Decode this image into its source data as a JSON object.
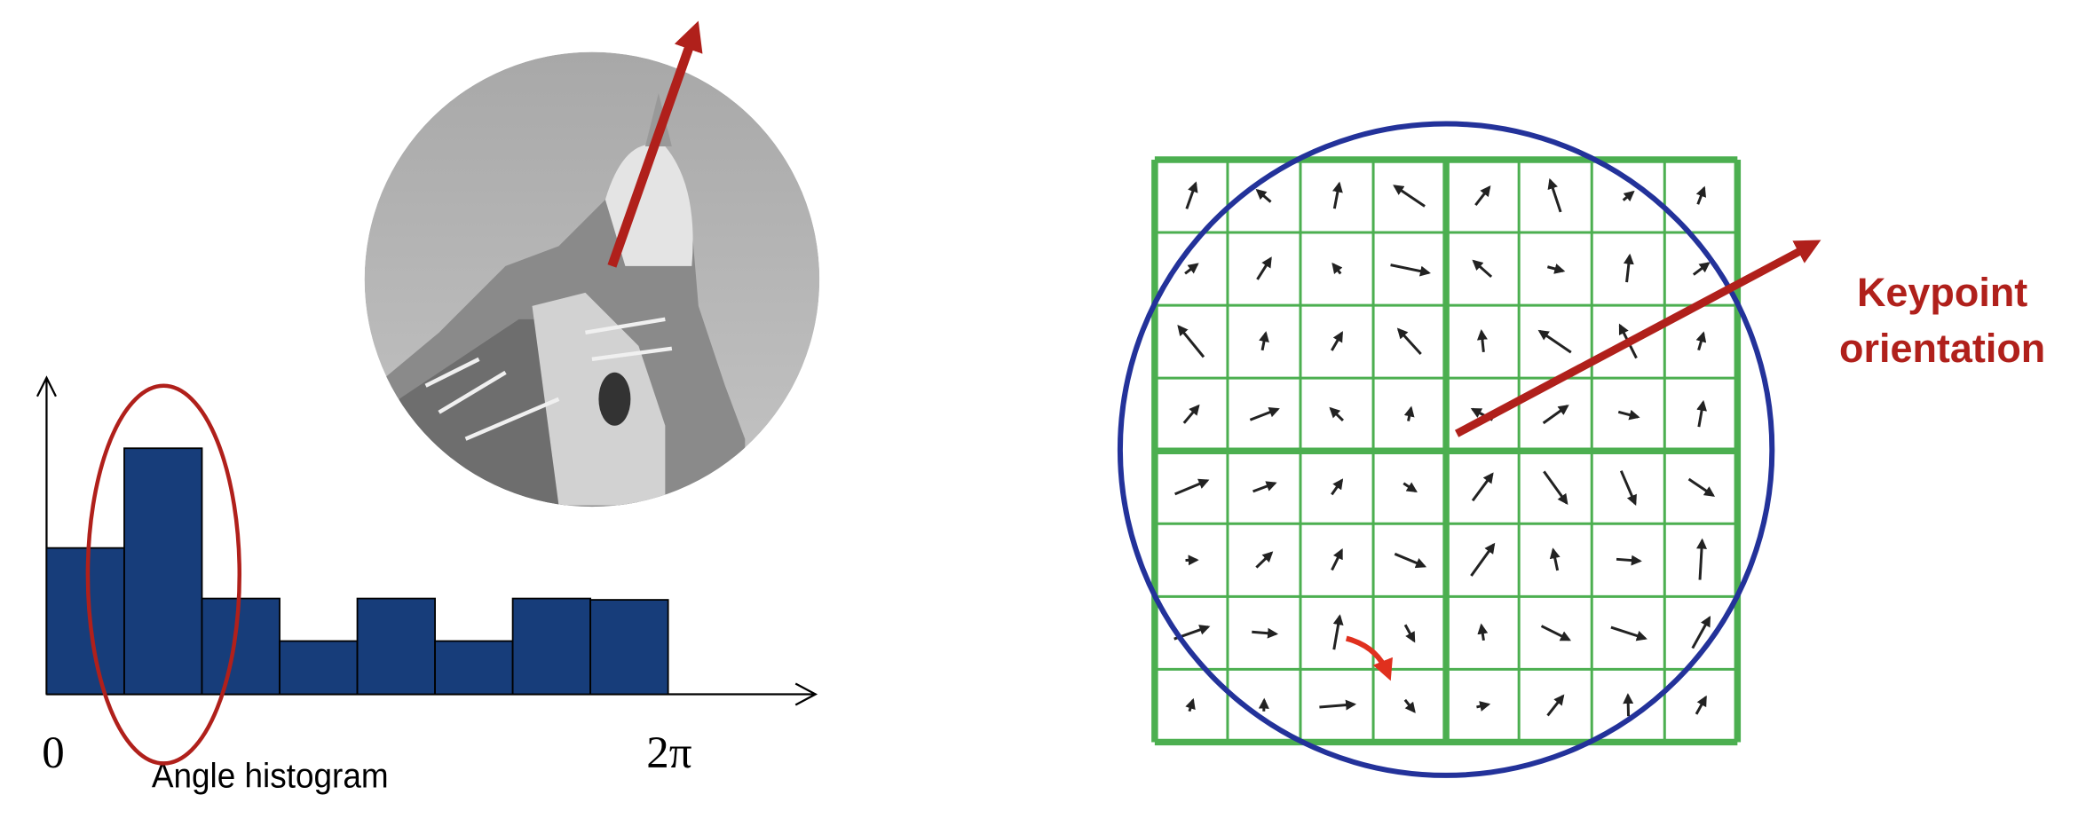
{
  "histogram": {
    "values": [
      110,
      185,
      72,
      40,
      72,
      40,
      72,
      71
    ],
    "axis_start": "0",
    "axis_end": "2π",
    "caption": "Angle histogram"
  },
  "descriptor": {
    "label_lines": [
      "Keypoint",
      "orientation"
    ]
  }
}
